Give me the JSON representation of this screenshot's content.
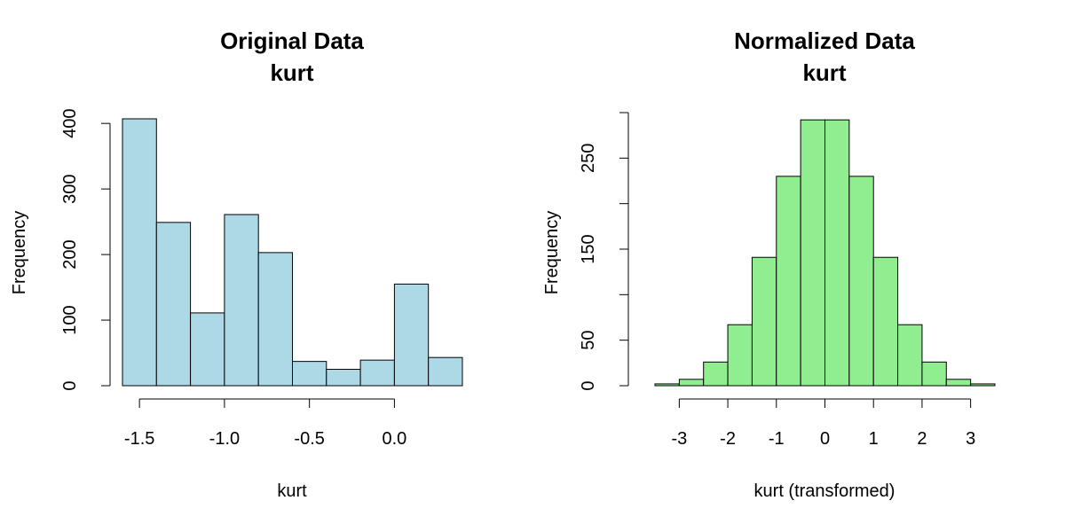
{
  "chart_data": [
    {
      "type": "bar",
      "title": "Original Data",
      "subtitle": "kurt",
      "xlabel": "kurt",
      "ylabel": "Frequency",
      "bin_edges": [
        -1.6,
        -1.4,
        -1.2,
        -1.0,
        -0.8,
        -0.6,
        -0.4,
        -0.2,
        0.0,
        0.2,
        0.4
      ],
      "values": [
        407,
        249,
        111,
        261,
        203,
        37,
        25,
        39,
        155,
        43
      ],
      "xlim": [
        -1.6,
        0.4
      ],
      "ylim": [
        0,
        407
      ],
      "x_ticks": [
        -1.5,
        -1.0,
        -0.5,
        0.0
      ],
      "x_tick_labels": [
        "-1.5",
        "-1.0",
        "-0.5",
        "0.0"
      ],
      "y_ticks": [
        0,
        100,
        200,
        300,
        400
      ],
      "y_tick_labels": [
        "0",
        "100",
        "200",
        "300",
        "400"
      ],
      "color": "#add8e6",
      "grid": false
    },
    {
      "type": "bar",
      "title": "Normalized Data",
      "subtitle": "kurt",
      "xlabel": "kurt (transformed)",
      "ylabel": "Frequency",
      "bin_edges": [
        -3.5,
        -3.0,
        -2.5,
        -2.0,
        -1.5,
        -1.0,
        -0.5,
        0.0,
        0.5,
        1.0,
        1.5,
        2.0,
        2.5,
        3.0,
        3.5
      ],
      "values": [
        2,
        7,
        26,
        67,
        141,
        230,
        292,
        292,
        230,
        141,
        67,
        26,
        7,
        2
      ],
      "xlim": [
        -3.5,
        3.5
      ],
      "ylim": [
        0,
        300
      ],
      "x_ticks": [
        -3,
        -2,
        -1,
        0,
        1,
        2,
        3
      ],
      "x_tick_labels": [
        "-3",
        "-2",
        "-1",
        "0",
        "1",
        "2",
        "3"
      ],
      "y_ticks": [
        0,
        50,
        100,
        150,
        200,
        250,
        300
      ],
      "y_tick_labels": [
        "0",
        "50",
        "",
        "150",
        "",
        "250",
        ""
      ],
      "color": "#90ee90",
      "grid": false
    }
  ]
}
